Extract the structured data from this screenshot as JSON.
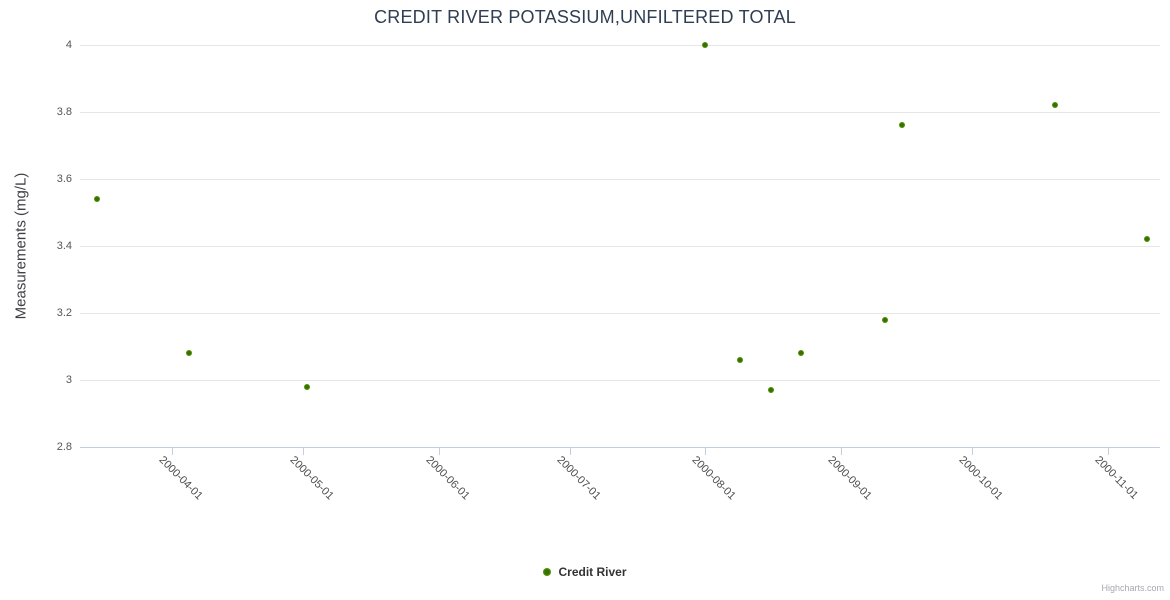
{
  "chart_data": {
    "type": "scatter",
    "title": "CREDIT RIVER POTASSIUM,UNFILTERED TOTAL",
    "xlabel": "",
    "ylabel": "Measurements (mg/L)",
    "ylim": [
      2.8,
      4
    ],
    "xlim": [
      "2000-03-11",
      "2000-11-13"
    ],
    "grid": "horizontal-only",
    "legend_position": "bottom-center",
    "y_ticks": [
      {
        "value": 4,
        "label": "4"
      },
      {
        "value": 3.8,
        "label": "3.8"
      },
      {
        "value": 3.6,
        "label": "3.6"
      },
      {
        "value": 3.4,
        "label": "3.4"
      },
      {
        "value": 3.2,
        "label": "3.2"
      },
      {
        "value": 3,
        "label": "3"
      },
      {
        "value": 2.8,
        "label": "2.8"
      }
    ],
    "x_ticks": [
      {
        "value": "2000-04-01",
        "label": "2000-04-01"
      },
      {
        "value": "2000-05-01",
        "label": "2000-05-01"
      },
      {
        "value": "2000-06-01",
        "label": "2000-06-01"
      },
      {
        "value": "2000-07-01",
        "label": "2000-07-01"
      },
      {
        "value": "2000-08-01",
        "label": "2000-08-01"
      },
      {
        "value": "2000-09-01",
        "label": "2000-09-01"
      },
      {
        "value": "2000-10-01",
        "label": "2000-10-01"
      },
      {
        "value": "2000-11-01",
        "label": "2000-11-01"
      }
    ],
    "series": [
      {
        "name": "Credit River",
        "color": "#5a9e0c",
        "points": [
          [
            "2000-03-15",
            3.54
          ],
          [
            "2000-04-05",
            3.08
          ],
          [
            "2000-05-02",
            2.98
          ],
          [
            "2000-08-01",
            4.0
          ],
          [
            "2000-08-09",
            3.06
          ],
          [
            "2000-08-16",
            2.97
          ],
          [
            "2000-08-23",
            3.08
          ],
          [
            "2000-09-11",
            3.18
          ],
          [
            "2000-09-15",
            3.76
          ],
          [
            "2000-10-20",
            3.82
          ],
          [
            "2000-11-10",
            3.42
          ]
        ]
      }
    ]
  },
  "legend": {
    "label": "Credit River"
  },
  "credits": {
    "label": "Highcharts.com"
  },
  "colors": {
    "accent": "#5a9e0c",
    "marker_center": "#376f00",
    "gridline": "#e6e6e6",
    "axis_line": "#c0d0e0",
    "title_text": "#2f3e52",
    "label_text": "#555555"
  }
}
